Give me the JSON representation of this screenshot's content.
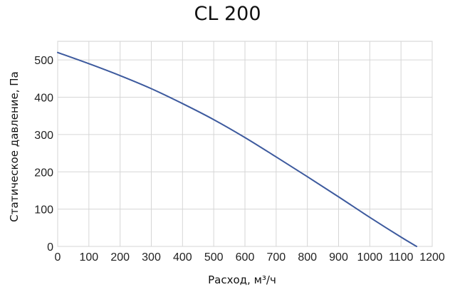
{
  "chart_data": {
    "type": "line",
    "title": "CL 200",
    "xlabel": "Расход, м³/ч",
    "ylabel": "Статическое давление, Па",
    "xlim": [
      0,
      1200
    ],
    "ylim": [
      0,
      550
    ],
    "x_ticks": [
      0,
      100,
      200,
      300,
      400,
      500,
      600,
      700,
      800,
      900,
      1000,
      1100,
      1200
    ],
    "y_ticks": [
      0,
      100,
      200,
      300,
      400,
      500
    ],
    "grid": true,
    "series": [
      {
        "color": "#3d5a9e",
        "points": [
          [
            0,
            520
          ],
          [
            100,
            490
          ],
          [
            200,
            458
          ],
          [
            300,
            423
          ],
          [
            400,
            383
          ],
          [
            500,
            340
          ],
          [
            600,
            292
          ],
          [
            700,
            240
          ],
          [
            800,
            187
          ],
          [
            900,
            133
          ],
          [
            1000,
            78
          ],
          [
            1100,
            25
          ],
          [
            1150,
            0
          ]
        ]
      }
    ]
  }
}
